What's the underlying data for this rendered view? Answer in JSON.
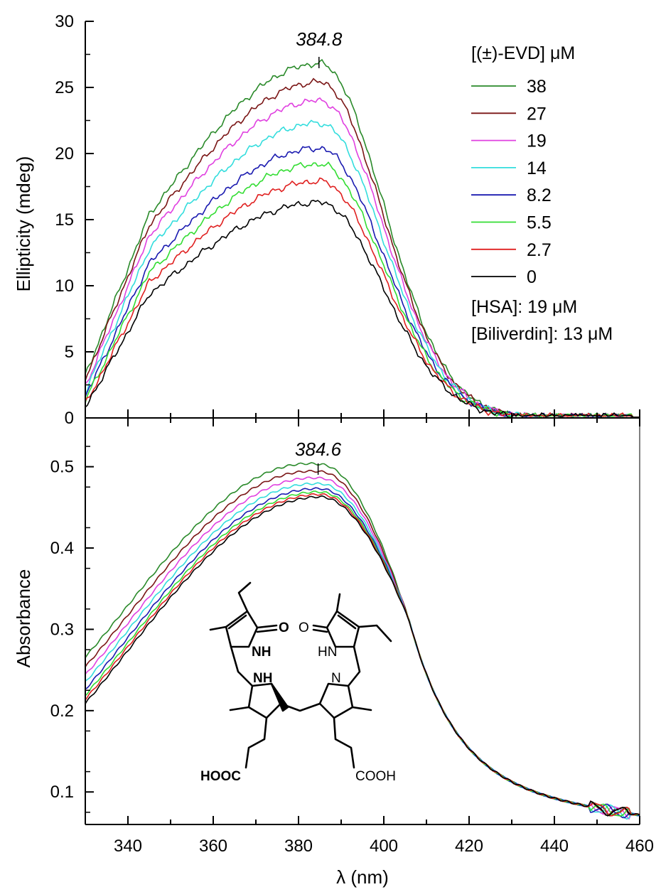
{
  "chart_data": [
    {
      "type": "line",
      "panel": "top",
      "ylabel": "Ellipticity (mdeg)",
      "xlim": [
        330,
        460
      ],
      "ylim": [
        0,
        30
      ],
      "x_ticks": [
        340,
        360,
        380,
        400,
        420,
        440,
        460
      ],
      "y_ticks": [
        0,
        5,
        10,
        15,
        20,
        25,
        30
      ],
      "y_tick_labels": [
        "0",
        "5",
        "10",
        "15",
        "20",
        "25",
        "30"
      ],
      "peak_annotation": {
        "x": 384.8,
        "label": "384.8"
      },
      "legend": {
        "title": "[(±)-EVD] μM",
        "placement": "top-right",
        "notes": [
          "[HSA]: 19 μM",
          "[Biliverdin]: 13 μM"
        ]
      },
      "series": [
        {
          "name": "38",
          "color": "#2a8a2a",
          "peak": 26.8,
          "y330": 3.2
        },
        {
          "name": "27",
          "color": "#7a1515",
          "peak": 25.4,
          "y330": 2.9
        },
        {
          "name": "19",
          "color": "#e040e0",
          "peak": 24.0,
          "y330": 2.4
        },
        {
          "name": "14",
          "color": "#33dddd",
          "peak": 22.3,
          "y330": 2.0
        },
        {
          "name": "8.2",
          "color": "#1a1ab0",
          "peak": 20.4,
          "y330": 1.6
        },
        {
          "name": "5.5",
          "color": "#33dd33",
          "peak": 19.2,
          "y330": 1.3
        },
        {
          "name": "2.7",
          "color": "#e02020",
          "peak": 17.9,
          "y330": 1.0
        },
        {
          "name": "0",
          "color": "#000000",
          "peak": 16.3,
          "y330": 0.8
        }
      ]
    },
    {
      "type": "line",
      "panel": "bottom",
      "xlabel": "λ (nm)",
      "ylabel": "Absorbance",
      "xlim": [
        330,
        460
      ],
      "ylim": [
        0.06,
        0.56
      ],
      "x_ticks": [
        340,
        360,
        380,
        400,
        420,
        440,
        460
      ],
      "x_tick_labels": [
        "340",
        "360",
        "380",
        "400",
        "420",
        "440",
        "460"
      ],
      "y_ticks": [
        0.1,
        0.2,
        0.3,
        0.4,
        0.5
      ],
      "y_tick_labels": [
        "0.1",
        "0.2",
        "0.3",
        "0.4",
        "0.5"
      ],
      "peak_annotation": {
        "x": 384.6,
        "label": "384.6"
      },
      "inset": {
        "type": "structure",
        "labels": [
          "O",
          "O",
          "NH",
          "HN",
          "NH",
          "N",
          "HOOC",
          "COOH"
        ]
      },
      "series": [
        {
          "name": "38",
          "color": "#2a8a2a",
          "peak": 0.503,
          "y330": 0.266
        },
        {
          "name": "27",
          "color": "#7a1515",
          "peak": 0.494,
          "y330": 0.254
        },
        {
          "name": "19",
          "color": "#e040e0",
          "peak": 0.486,
          "y330": 0.244
        },
        {
          "name": "14",
          "color": "#33dddd",
          "peak": 0.479,
          "y330": 0.235
        },
        {
          "name": "8.2",
          "color": "#1a1ab0",
          "peak": 0.473,
          "y330": 0.226
        },
        {
          "name": "5.5",
          "color": "#33dd33",
          "peak": 0.469,
          "y330": 0.219
        },
        {
          "name": "2.7",
          "color": "#e02020",
          "peak": 0.466,
          "y330": 0.214
        },
        {
          "name": "0",
          "color": "#000000",
          "peak": 0.463,
          "y330": 0.209
        }
      ]
    }
  ]
}
